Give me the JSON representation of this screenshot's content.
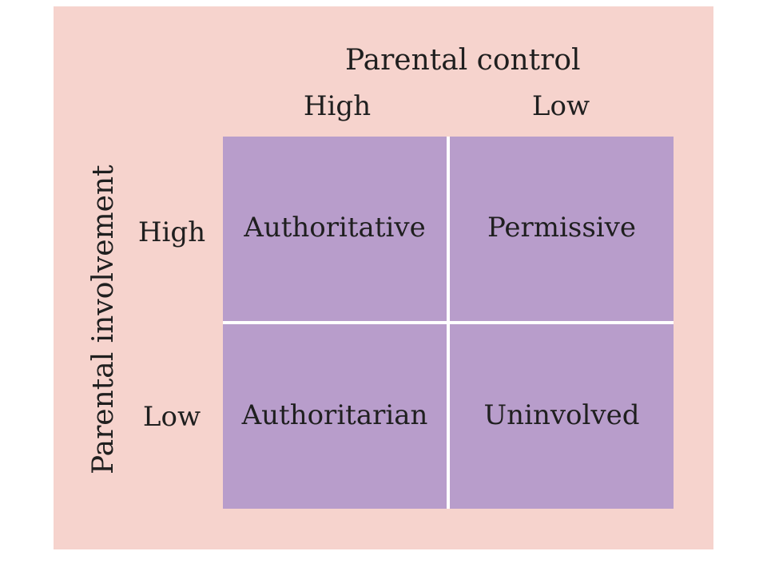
{
  "colors": {
    "panel_background": "#f6d3cd",
    "cell_fill": "#b89dcb",
    "divider": "#ffffff",
    "text": "#1f1f1f"
  },
  "columns": {
    "title": "Parental control",
    "high": "High",
    "low": "Low"
  },
  "rows": {
    "title": "Parental involvement",
    "high": "High",
    "low": "Low"
  },
  "cells": {
    "high_control_high_involvement": "Authoritative",
    "low_control_high_involvement": "Permissive",
    "high_control_low_involvement": "Authoritarian",
    "low_control_low_involvement": "Uninvolved"
  }
}
